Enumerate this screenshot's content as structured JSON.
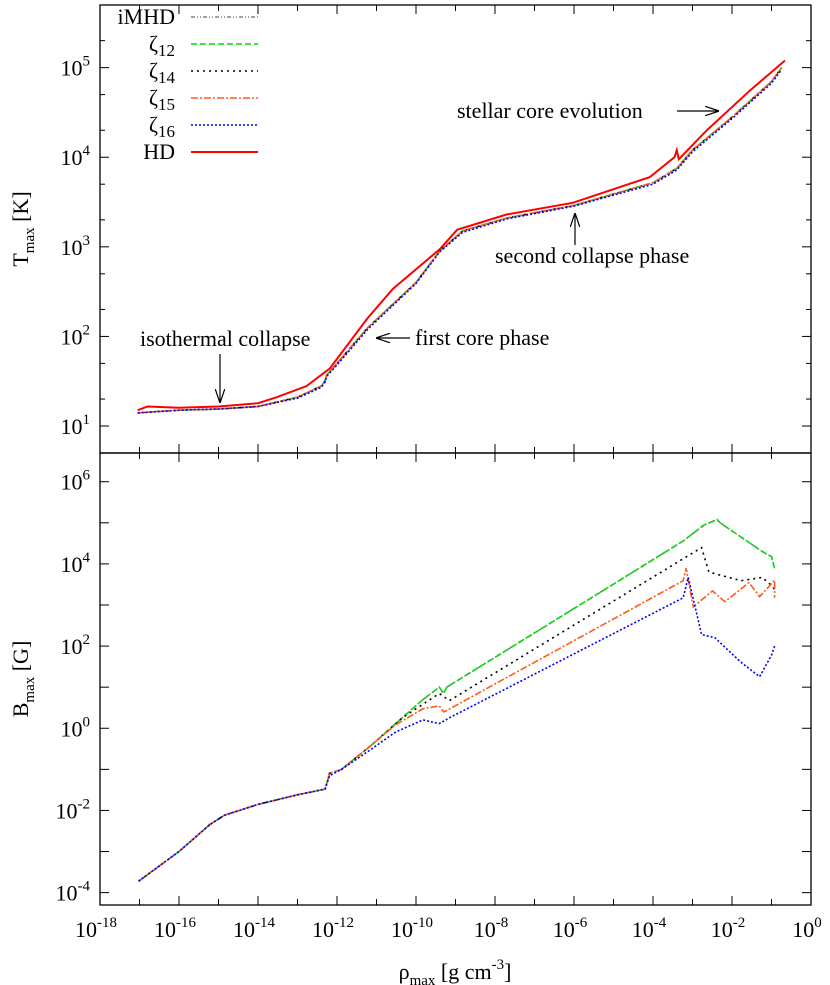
{
  "chart_data": [
    {
      "type": "line",
      "panel": "top",
      "ylabel": {
        "base": "T",
        "sub": "max",
        "unit": " [K]"
      },
      "xlim": [
        1e-18,
        1
      ],
      "ylim": [
        5,
        500000
      ],
      "xscale": "log",
      "yscale": "log",
      "ytick_exponents": [
        1,
        2,
        3,
        4,
        5
      ],
      "grid": false,
      "legend": "top-left",
      "annotations": [
        {
          "text": "isothermal collapse",
          "arrow": "down"
        },
        {
          "text": "first core phase",
          "arrow": "left"
        },
        {
          "text": "second collapse phase",
          "arrow": "up"
        },
        {
          "text": "stellar core evolution",
          "arrow": "right"
        }
      ],
      "series": [
        {
          "name": "iMHD",
          "color": "#808080",
          "style": "dash-dot-dot",
          "x": [
            9e-18,
            1e-16,
            1e-15,
            1e-14,
            1e-13,
            4e-13,
            5e-13,
            5.5e-13,
            1e-12,
            6e-12,
            1e-10,
            4e-10,
            1.5e-09,
            2e-08,
            1e-06,
            0.0001,
            0.0004,
            0.001,
            0.01,
            0.1,
            0.18
          ],
          "y": [
            14,
            15,
            15.5,
            16.5,
            21,
            28,
            32,
            37,
            50,
            125,
            400,
            900,
            1500,
            2100,
            2900,
            5200,
            7500,
            12000,
            28000,
            70000,
            100000
          ]
        },
        {
          "name": "ζ12",
          "color": "#00dd00",
          "style": "dashed",
          "x": [
            9e-18,
            1e-16,
            1e-15,
            1e-14,
            1e-13,
            4e-13,
            5e-13,
            5.5e-13,
            1e-12,
            6e-12,
            1e-10,
            4e-10,
            1.5e-09,
            2e-08,
            1e-06,
            0.0001,
            0.0004,
            0.001,
            0.01,
            0.1,
            0.18
          ],
          "y": [
            14,
            15,
            15.5,
            16.5,
            21,
            28,
            32,
            37,
            50,
            125,
            400,
            900,
            1500,
            2100,
            2900,
            5200,
            7500,
            12000,
            28000,
            70000,
            100000
          ]
        },
        {
          "name": "ζ14",
          "color": "#000000",
          "style": "dotted",
          "x": [
            9e-18,
            1e-16,
            1e-15,
            1e-14,
            1e-13,
            4e-13,
            5e-13,
            5.5e-13,
            1e-12,
            6e-12,
            1e-10,
            4e-10,
            1.5e-09,
            2e-08,
            1e-06,
            0.0001,
            0.0004,
            0.001,
            0.01,
            0.1,
            0.18
          ],
          "y": [
            14,
            15,
            15.5,
            16.5,
            21,
            28,
            32,
            37,
            50,
            125,
            400,
            900,
            1500,
            2100,
            2900,
            5200,
            7500,
            12000,
            28000,
            70000,
            100000
          ]
        },
        {
          "name": "ζ15",
          "color": "#ff5a1a",
          "style": "dash-dot",
          "x": [
            9e-18,
            1e-16,
            1e-15,
            1e-14,
            1e-13,
            4e-13,
            5e-13,
            5.5e-13,
            1e-12,
            6e-12,
            1e-10,
            4e-10,
            1.5e-09,
            2e-08,
            1e-06,
            0.0001,
            0.0004,
            0.001,
            0.01,
            0.1,
            0.18
          ],
          "y": [
            14,
            15,
            15.5,
            16.5,
            21,
            28,
            32,
            37,
            50,
            125,
            400,
            900,
            1500,
            2100,
            2900,
            5200,
            7500,
            12000,
            28000,
            70000,
            100000
          ]
        },
        {
          "name": "ζ16",
          "color": "#0000ff",
          "style": "fine-dotted",
          "x": [
            9e-18,
            1e-16,
            1e-15,
            1e-14,
            1e-13,
            4e-13,
            5e-13,
            5.5e-13,
            1e-12,
            6e-12,
            1e-10,
            4e-10,
            1.5e-09,
            2e-08,
            1e-06,
            0.0001,
            0.0004,
            0.001,
            0.01,
            0.1,
            0.18
          ],
          "y": [
            14,
            15,
            15.5,
            16.5,
            20.5,
            27,
            31,
            36,
            48,
            120,
            390,
            880,
            1450,
            2050,
            2850,
            5000,
            7200,
            11500,
            27000,
            67000,
            95000
          ]
        },
        {
          "name": "HD",
          "color": "#ff0000",
          "style": "solid",
          "x": [
            9e-18,
            1.6e-17,
            1e-16,
            1e-15,
            1e-14,
            3e-14,
            1.7e-13,
            6.6e-13,
            5.8e-12,
            2.6e-11,
            4e-10,
            1.1e-09,
            2e-08,
            9.3e-07,
            8.3e-05,
            0.00035,
            0.0004,
            0.00045,
            0.0023,
            0.029,
            0.22
          ],
          "y": [
            15,
            16.5,
            16,
            16.5,
            18,
            21,
            28,
            44,
            158,
            340,
            940,
            1550,
            2300,
            3100,
            6000,
            10000,
            12000,
            9500,
            20000,
            56000,
            120000
          ]
        }
      ]
    },
    {
      "type": "line",
      "panel": "bottom",
      "xlabel": {
        "base": "ρ",
        "sub": "max",
        "unit": " [g cm",
        "sup": "-3",
        "close": "]"
      },
      "ylabel": {
        "base": "B",
        "sub": "max",
        "unit": " [G]"
      },
      "xlim": [
        1e-18,
        1
      ],
      "ylim": [
        5e-05,
        5000000
      ],
      "xscale": "log",
      "yscale": "log",
      "xtick_exponents": [
        -18,
        -16,
        -14,
        -12,
        -10,
        -8,
        -6,
        -4,
        -2,
        0
      ],
      "ytick_exponents": [
        -4,
        -2,
        0,
        2,
        4,
        6
      ],
      "grid": false,
      "series": [
        {
          "name": "iMHD",
          "color": "#808080",
          "style": "dash-dot-dot",
          "x": [
            9.5e-18,
            1e-16,
            6e-16,
            1.4e-15,
            1e-14,
            1e-13,
            5e-13,
            6.5e-13,
            1.3e-12,
            7e-12,
            4.5e-11,
            1.5e-10,
            3.9e-10,
            5e-10,
            6e-10,
            0.00058,
            0.002,
            0.0042,
            0.005,
            0.058,
            0.1,
            0.12
          ],
          "y": [
            0.00019,
            0.001,
            0.0045,
            0.0076,
            0.014,
            0.024,
            0.033,
            0.08,
            0.1,
            0.37,
            1.8,
            5,
            10,
            7,
            10,
            36000,
            90000,
            120000,
            100000,
            20000,
            15000,
            7800
          ]
        },
        {
          "name": "ζ12",
          "color": "#00dd00",
          "style": "dashed",
          "x": [
            9.5e-18,
            1e-16,
            6e-16,
            1.4e-15,
            1e-14,
            1e-13,
            5e-13,
            6.5e-13,
            1.3e-12,
            7e-12,
            4.5e-11,
            1.5e-10,
            3.9e-10,
            5e-10,
            6e-10,
            0.00058,
            0.002,
            0.0042,
            0.005,
            0.058,
            0.1,
            0.12
          ],
          "y": [
            0.00019,
            0.001,
            0.0045,
            0.0076,
            0.014,
            0.024,
            0.033,
            0.08,
            0.1,
            0.37,
            1.8,
            5,
            10,
            7,
            10,
            36000,
            90000,
            120000,
            100000,
            20000,
            15000,
            7800
          ]
        },
        {
          "name": "ζ14",
          "color": "#000000",
          "style": "dotted",
          "x": [
            9.5e-18,
            1e-16,
            6e-16,
            1.4e-15,
            1e-14,
            1e-13,
            5e-13,
            6.5e-13,
            1.3e-12,
            7e-12,
            4.5e-11,
            3.9e-10,
            7e-10,
            0.0017,
            0.0026,
            0.017,
            0.058,
            0.1,
            0.12
          ],
          "y": [
            0.00019,
            0.001,
            0.0045,
            0.0076,
            0.014,
            0.024,
            0.033,
            0.08,
            0.1,
            0.37,
            1.8,
            7,
            4.7,
            25000,
            6300,
            3900,
            4700,
            3000,
            2400
          ]
        },
        {
          "name": "ζ15",
          "color": "#ff5a1a",
          "style": "dash-dot",
          "x": [
            9.5e-18,
            1e-16,
            6e-16,
            1.4e-15,
            1e-14,
            1e-13,
            5e-13,
            6.5e-13,
            1.3e-12,
            7e-12,
            3e-11,
            1.5e-10,
            3.9e-10,
            5e-10,
            6e-10,
            0.00058,
            0.00069,
            0.00105,
            0.0032,
            0.0066,
            0.027,
            0.05,
            0.12,
            0.12
          ],
          "y": [
            0.00019,
            0.001,
            0.0045,
            0.0076,
            0.014,
            0.024,
            0.033,
            0.08,
            0.1,
            0.37,
            1.2,
            3,
            3.5,
            2.5,
            2.7,
            3900,
            7800,
            900,
            2200,
            1200,
            3500,
            1600,
            4000,
            1500
          ]
        },
        {
          "name": "ζ16",
          "color": "#0000ff",
          "style": "fine-dotted",
          "x": [
            9.5e-18,
            1e-16,
            6e-16,
            1.4e-15,
            1e-14,
            1e-13,
            5e-13,
            6.5e-13,
            1.3e-12,
            7e-12,
            3e-11,
            1.5e-10,
            3.9e-10,
            7e-10,
            0.00058,
            0.00078,
            0.0017,
            0.0037,
            0.017,
            0.05,
            0.1,
            0.12
          ],
          "y": [
            0.00019,
            0.001,
            0.0045,
            0.0076,
            0.014,
            0.024,
            0.033,
            0.07,
            0.1,
            0.3,
            0.8,
            1.6,
            1.3,
            1.8,
            1500,
            4700,
            190,
            160,
            40,
            18,
            60,
            100
          ]
        }
      ]
    }
  ]
}
